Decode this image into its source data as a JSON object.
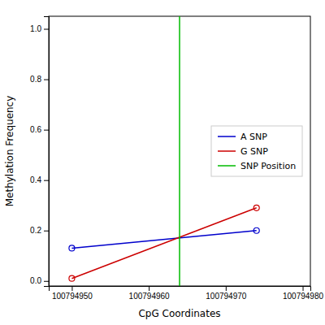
{
  "chart_data": {
    "type": "line",
    "xlabel": "CpG Coordinates",
    "ylabel": "Methylation Frequency",
    "x": [
      100794950,
      100794974
    ],
    "series": [
      {
        "name": "A SNP",
        "color": "#0000CC",
        "marker": "circle",
        "values": [
          0.13,
          0.2
        ]
      },
      {
        "name": "G SNP",
        "color": "#CC0000",
        "marker": "circle",
        "values": [
          0.01,
          0.29
        ]
      },
      {
        "name": "SNP Position",
        "type": "vline",
        "color": "#00BB00",
        "x": 100794964
      }
    ],
    "xlim": [
      100794947,
      100794981
    ],
    "ylim": [
      -0.02,
      1.05
    ],
    "xticks": [
      100794950,
      100794960,
      100794970,
      100794980
    ],
    "yticks": [
      {
        "value": 0.0,
        "label": "0.0"
      },
      0.2,
      0.4,
      0.6,
      0.8,
      {
        "value": 1.0,
        "label": "1.0"
      }
    ],
    "grid": false,
    "legend": "right"
  }
}
